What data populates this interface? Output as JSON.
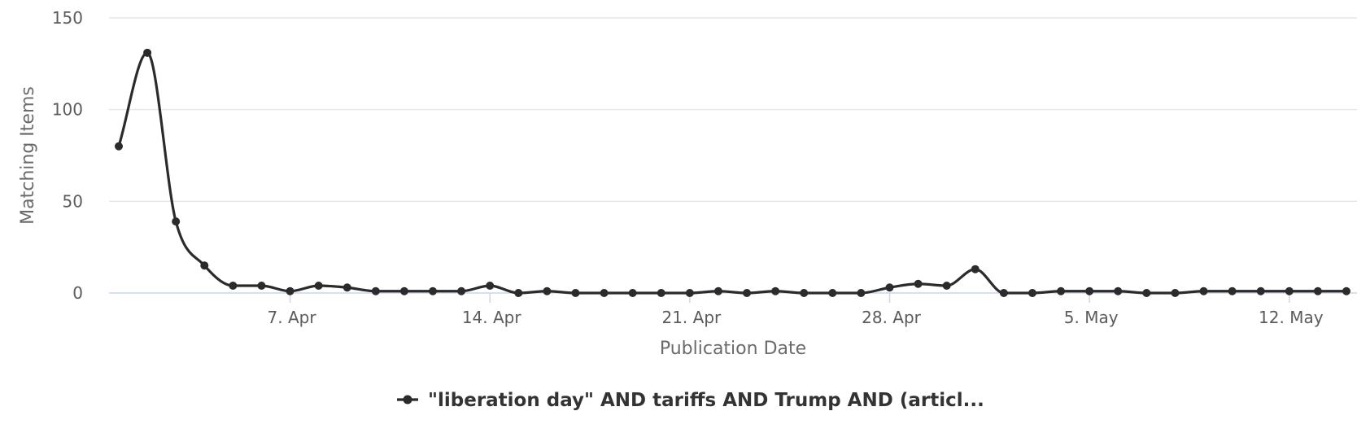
{
  "chart_data": {
    "type": "line",
    "title": "",
    "xlabel": "Publication Date",
    "ylabel": "Matching Items",
    "x_tick_labels": [
      "7. Apr",
      "14. Apr",
      "21. Apr",
      "28. Apr",
      "5. May",
      "12. May"
    ],
    "y_tick_labels": [
      "0",
      "50",
      "100",
      "150"
    ],
    "ylim": [
      0,
      150
    ],
    "xlim": [
      "2025-04-01",
      "2025-05-15"
    ],
    "grid": true,
    "legend_position": "bottom-center",
    "colors": {
      "series": "#2b2b2b",
      "grid": "#e6e6e6",
      "axis": "#ccd6eb"
    },
    "x": [
      "2025-04-01",
      "2025-04-02",
      "2025-04-03",
      "2025-04-04",
      "2025-04-05",
      "2025-04-06",
      "2025-04-07",
      "2025-04-08",
      "2025-04-09",
      "2025-04-10",
      "2025-04-11",
      "2025-04-12",
      "2025-04-13",
      "2025-04-14",
      "2025-04-15",
      "2025-04-16",
      "2025-04-17",
      "2025-04-18",
      "2025-04-19",
      "2025-04-20",
      "2025-04-21",
      "2025-04-22",
      "2025-04-23",
      "2025-04-24",
      "2025-04-25",
      "2025-04-26",
      "2025-04-27",
      "2025-04-28",
      "2025-04-29",
      "2025-04-30",
      "2025-05-01",
      "2025-05-02",
      "2025-05-03",
      "2025-05-04",
      "2025-05-05",
      "2025-05-06",
      "2025-05-07",
      "2025-05-08",
      "2025-05-09",
      "2025-05-10",
      "2025-05-11",
      "2025-05-12",
      "2025-05-13",
      "2025-05-14"
    ],
    "series": [
      {
        "name": "\"liberation day\" AND tariffs AND Trump AND (articl...",
        "values": [
          80,
          131,
          39,
          15,
          4,
          4,
          1,
          4,
          3,
          1,
          1,
          1,
          1,
          4,
          0,
          1,
          0,
          0,
          0,
          0,
          0,
          1,
          0,
          1,
          0,
          0,
          0,
          3,
          5,
          4,
          13,
          0,
          0,
          1,
          1,
          1,
          0,
          0,
          1,
          1,
          1,
          1,
          1,
          1
        ]
      }
    ]
  }
}
